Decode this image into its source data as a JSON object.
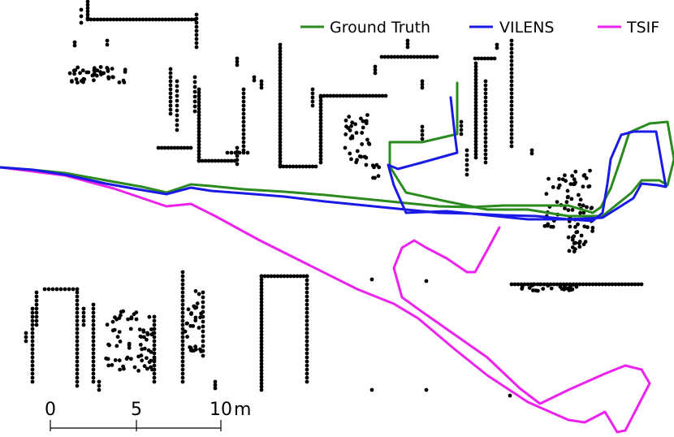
{
  "legend": {
    "items": [
      {
        "label": "Ground Truth",
        "color": "#2a8a1e"
      },
      {
        "label": "VILENS",
        "color": "#1a1ae6"
      },
      {
        "label": "TSIF",
        "color": "#ee22ee"
      }
    ]
  },
  "scale_bar": {
    "ticks": [
      "0",
      "5",
      "10"
    ],
    "unit": "m"
  },
  "colors": {
    "background": "#ffffff",
    "map_points": "#000000"
  }
}
